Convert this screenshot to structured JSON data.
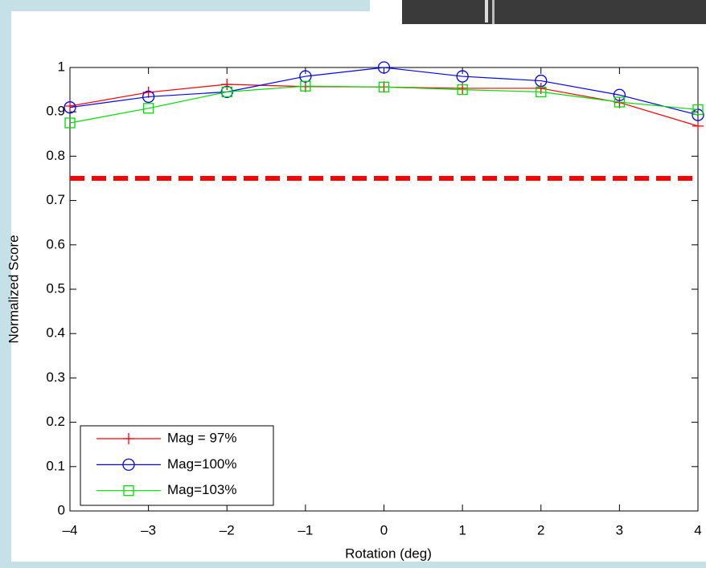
{
  "chart_data": {
    "type": "line",
    "xlabel": "Rotation (deg)",
    "ylabel": "Normalized Score",
    "x": [
      -4,
      -3,
      -2,
      -1,
      0,
      1,
      2,
      3,
      4
    ],
    "series": [
      {
        "name": "Mag = 97%",
        "color": "#ff0000",
        "marker": "plus",
        "values": [
          0.913,
          0.944,
          0.962,
          0.957,
          0.956,
          0.953,
          0.953,
          0.921,
          0.868
        ]
      },
      {
        "name": "Mag=100%",
        "color": "#0000ff",
        "marker": "circle",
        "values": [
          0.91,
          0.934,
          0.945,
          0.98,
          1.0,
          0.98,
          0.97,
          0.938,
          0.893
        ]
      },
      {
        "name": "Mag=103%",
        "color": "#00dd00",
        "marker": "square",
        "values": [
          0.875,
          0.908,
          0.945,
          0.958,
          0.956,
          0.95,
          0.945,
          0.922,
          0.905
        ]
      }
    ],
    "hline": {
      "value": 0.75,
      "color": "#ff0000"
    },
    "xlim": [
      -4,
      4
    ],
    "xticks": [
      {
        "value": -4,
        "label": "–4"
      },
      {
        "value": -3,
        "label": "–3"
      },
      {
        "value": -2,
        "label": "–2"
      },
      {
        "value": -1,
        "label": "–1"
      },
      0,
      1,
      2,
      3,
      4
    ],
    "ylim": [
      0,
      1
    ],
    "yticks": [
      0,
      0.1,
      0.2,
      0.3,
      0.4,
      0.5,
      0.6,
      0.7,
      0.8,
      0.9,
      1
    ],
    "grid": false,
    "legend": "lower left"
  }
}
